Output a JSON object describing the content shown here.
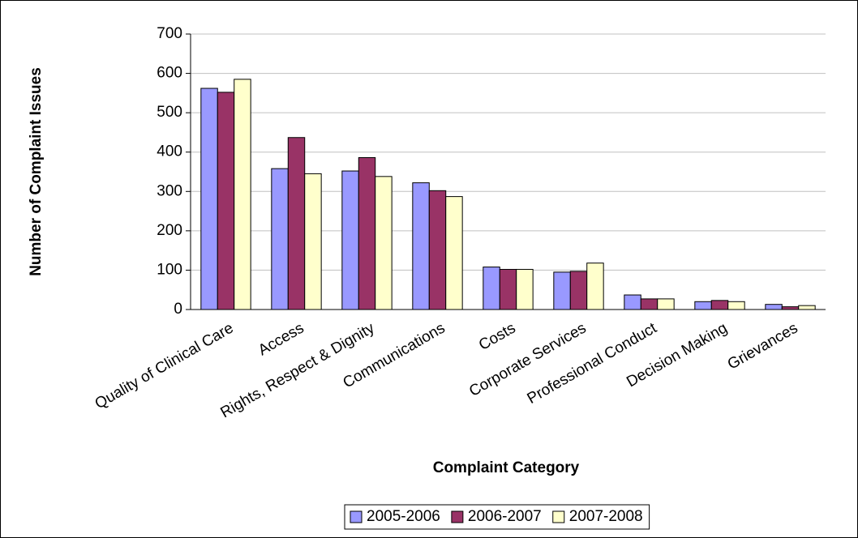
{
  "chart_data": {
    "type": "bar",
    "x_label": "Complaint Category",
    "y_label": "Number of Complaint Issues",
    "categories": [
      "Quality of Clinical Care",
      "Access",
      "Rights, Respect & Dignity",
      "Communications",
      "Costs",
      "Corporate Services",
      "Professional Conduct",
      "Decision Making",
      "Grievances"
    ],
    "series": [
      {
        "name": "2005-2006",
        "color": "#9999ff",
        "values": [
          562,
          358,
          352,
          322,
          108,
          95,
          37,
          20,
          13
        ]
      },
      {
        "name": "2006-2007",
        "color": "#993366",
        "values": [
          552,
          437,
          386,
          302,
          102,
          97,
          27,
          23,
          7
        ]
      },
      {
        "name": "2007-2008",
        "color": "#ffffcc",
        "values": [
          585,
          345,
          338,
          287,
          102,
          118,
          27,
          20,
          10
        ]
      }
    ],
    "ylim": [
      0,
      700
    ],
    "yticks": [
      0,
      100,
      200,
      300,
      400,
      500,
      600,
      700
    ],
    "grid": true,
    "legend": "bottom"
  }
}
